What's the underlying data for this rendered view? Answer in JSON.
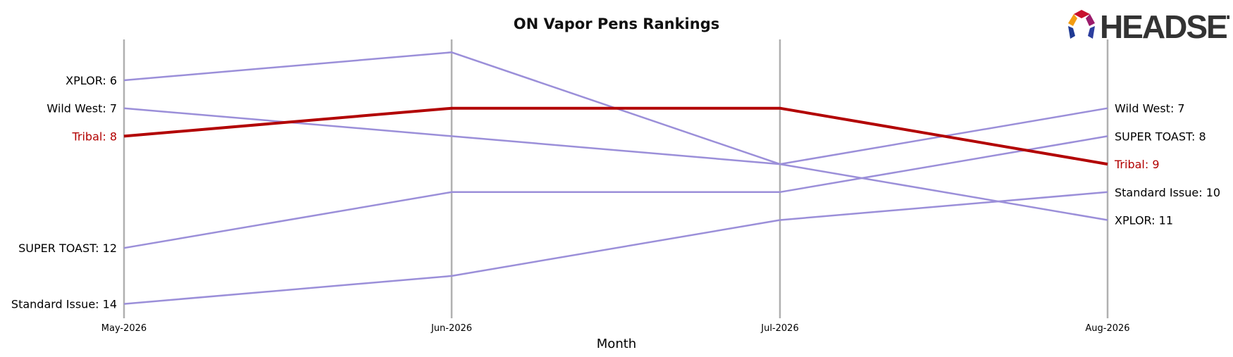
{
  "chart_data": {
    "type": "line",
    "title": "ON Vapor Pens Rankings",
    "xlabel": "Month",
    "ylabel": "",
    "categories": [
      "May-2026",
      "Jun-2026",
      "Jul-2026",
      "Aug-2026"
    ],
    "y_direction": "rank (1 at top, inverted)",
    "ylim": [
      4.5,
      14
    ],
    "grid": "vertical lines at each month",
    "highlight_series": "Tribal",
    "series": [
      {
        "name": "XPLOR",
        "values": [
          6,
          5,
          9,
          11
        ],
        "color": "#9b8fd9",
        "start_label": "XPLOR: 6",
        "end_label": "XPLOR: 11"
      },
      {
        "name": "Wild West",
        "values": [
          7,
          8,
          9,
          7
        ],
        "color": "#9b8fd9",
        "start_label": "Wild West: 7",
        "end_label": "Wild West: 7"
      },
      {
        "name": "Tribal",
        "values": [
          8,
          7,
          7,
          9
        ],
        "color": "#b20000",
        "start_label": "Tribal: 8",
        "end_label": "Tribal: 9"
      },
      {
        "name": "SUPER TOAST",
        "values": [
          12,
          10,
          10,
          8
        ],
        "color": "#9b8fd9",
        "start_label": "SUPER TOAST: 12",
        "end_label": "SUPER TOAST: 8"
      },
      {
        "name": "Standard Issue",
        "values": [
          14,
          13,
          11,
          10
        ],
        "color": "#9b8fd9",
        "start_label": "Standard Issue: 14",
        "end_label": "Standard Issue: 10"
      }
    ]
  },
  "logo": {
    "text": "HEADSET"
  },
  "colors": {
    "highlight": "#b20000",
    "others": "#9b8fd9",
    "gridline": "#b0b0b0",
    "text": "#000000"
  }
}
